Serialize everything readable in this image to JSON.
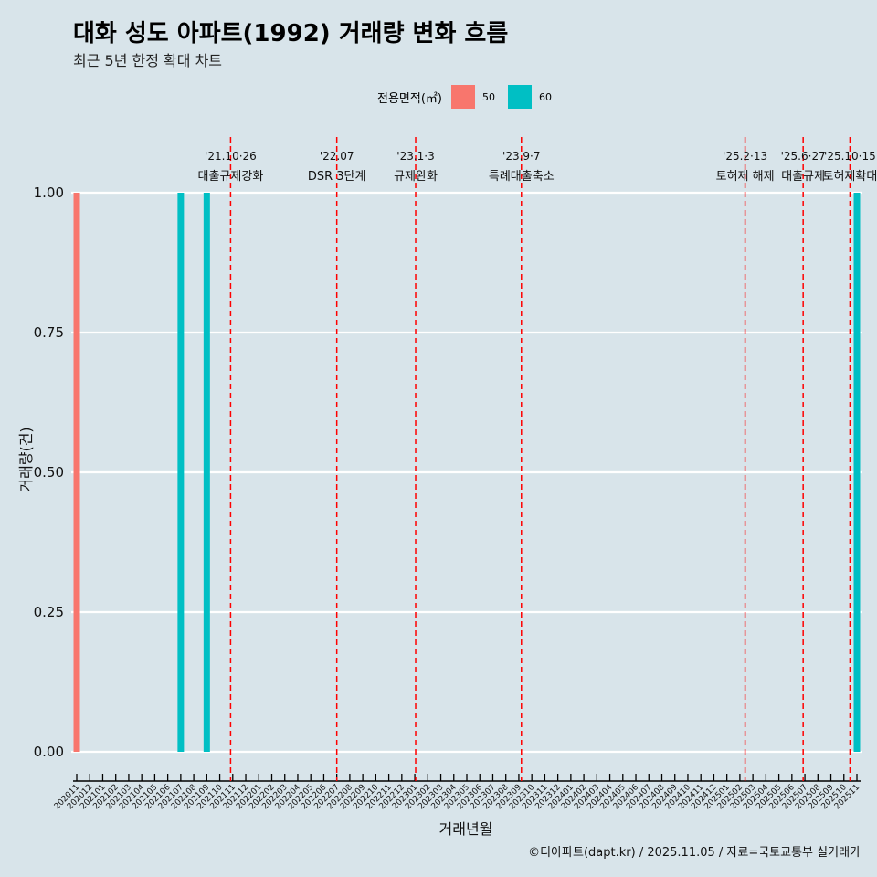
{
  "title": "대화 성도 아파트(1992) 거래량 변화 흐름",
  "subtitle": "최근 5년 한정 확대 차트",
  "caption": "©디아파트(dapt.kr) / 2025.11.05 / 자료=국토교통부 실거래가",
  "colors": {
    "50": "#f8766d",
    "60": "#00bfc4",
    "event": "#ff0000",
    "grid": "#ffffff"
  },
  "chart_data": {
    "type": "bar",
    "xlabel": "거래년월",
    "ylabel": "거래량(건)",
    "ylim": [
      0,
      1
    ],
    "yticks": [
      "0.00",
      "0.25",
      "0.50",
      "0.75",
      "1.00"
    ],
    "legend_title": "전용면적(㎡)",
    "legend_position": "top",
    "categories": [
      "202011",
      "202012",
      "202101",
      "202102",
      "202103",
      "202104",
      "202105",
      "202106",
      "202107",
      "202108",
      "202109",
      "202110",
      "202111",
      "202112",
      "202201",
      "202202",
      "202203",
      "202204",
      "202205",
      "202206",
      "202207",
      "202208",
      "202209",
      "202210",
      "202211",
      "202212",
      "202301",
      "202302",
      "202303",
      "202304",
      "202305",
      "202306",
      "202307",
      "202308",
      "202309",
      "202310",
      "202311",
      "202312",
      "202401",
      "202402",
      "202403",
      "202404",
      "202405",
      "202406",
      "202407",
      "202408",
      "202409",
      "202410",
      "202411",
      "202412",
      "202501",
      "202502",
      "202503",
      "202504",
      "202505",
      "202506",
      "202507",
      "202508",
      "202509",
      "202510",
      "202511"
    ],
    "series": [
      {
        "name": "50",
        "points": [
          {
            "month": "202011",
            "value": 1
          }
        ]
      },
      {
        "name": "60",
        "points": [
          {
            "month": "202107",
            "value": 1
          },
          {
            "month": "202109",
            "value": 1
          },
          {
            "month": "202511",
            "value": 1
          }
        ]
      }
    ],
    "events": [
      {
        "date": "2021-10-26",
        "label1": "'21.10·26",
        "label2": "대출규제강화"
      },
      {
        "date": "2022-07-01",
        "label1": "'22.07",
        "label2": "DSR 3단계"
      },
      {
        "date": "2023-01-03",
        "label1": "'23.1·3",
        "label2": "규제완화"
      },
      {
        "date": "2023-09-07",
        "label1": "'23.9·7",
        "label2": "특례대출축소"
      },
      {
        "date": "2025-02-13",
        "label1": "'25.2·13",
        "label2": "토허제 해제"
      },
      {
        "date": "2025-06-27",
        "label1": "'25.6·27",
        "label2": "대출규제"
      },
      {
        "date": "2025-10-15",
        "label1": "'25.10·15",
        "label2": "토허제확대"
      }
    ]
  }
}
